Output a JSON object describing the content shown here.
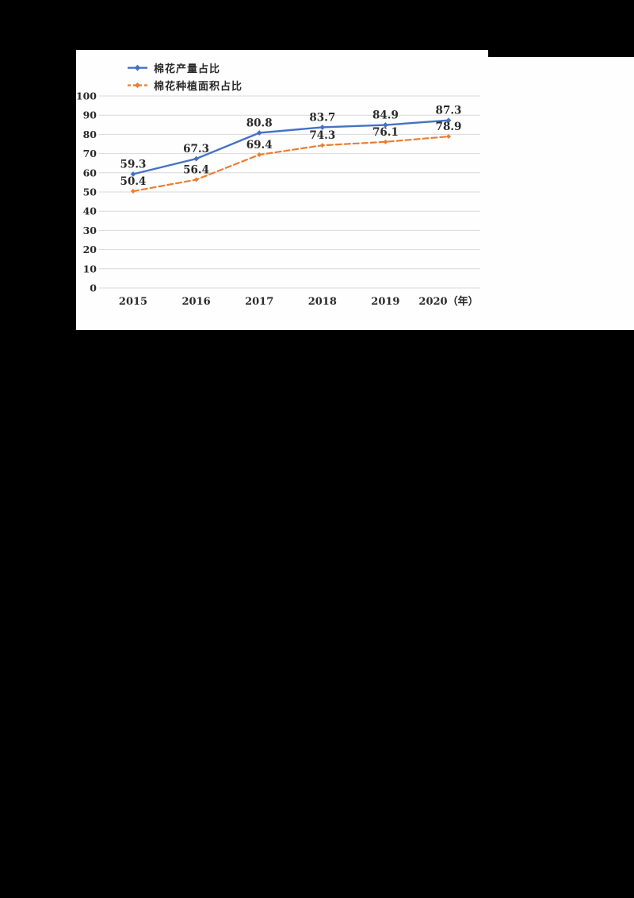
{
  "background_color": "#000000",
  "panel_color": "#fefefe",
  "chart_data": {
    "type": "line",
    "categories": [
      "2015",
      "2016",
      "2017",
      "2018",
      "2019",
      "2020（年）"
    ],
    "series": [
      {
        "name": "棉花产量占比",
        "color": "#4472c4",
        "line_style": "solid",
        "marker": "diamond",
        "values": [
          59.3,
          67.3,
          80.8,
          83.7,
          84.9,
          87.3
        ]
      },
      {
        "name": "棉花种植面积占比",
        "color": "#ed7d31",
        "line_style": "dashed",
        "marker": "diamond",
        "values": [
          50.4,
          56.4,
          69.4,
          74.3,
          76.1,
          78.9
        ]
      }
    ],
    "yticks": [
      0,
      10,
      20,
      30,
      40,
      50,
      60,
      70,
      80,
      90,
      100
    ],
    "ylim": [
      0,
      100
    ],
    "grid": "horizontal",
    "gridline_color": "#d9d9d9",
    "text_color": "#2a2a2a",
    "data_labels": true,
    "legend_position": "top-left",
    "title": "",
    "xlabel": "",
    "ylabel": ""
  }
}
